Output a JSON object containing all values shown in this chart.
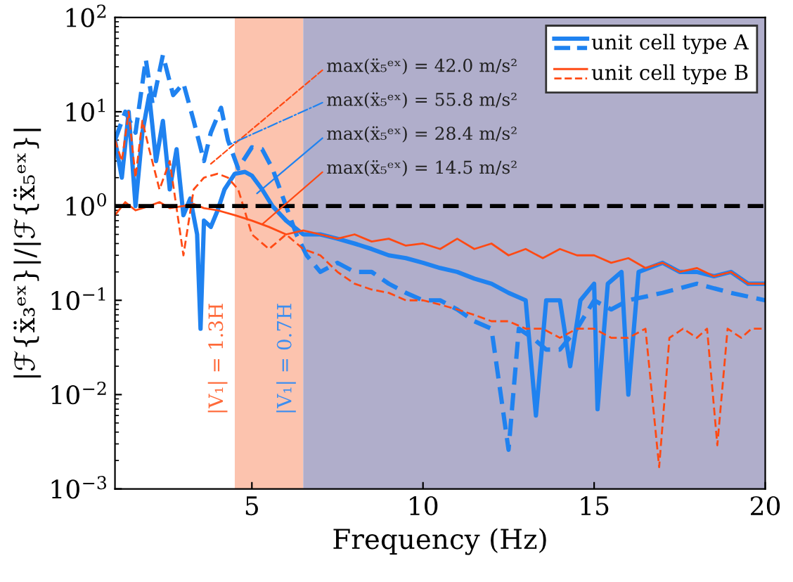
{
  "chart_data": {
    "type": "line",
    "xlabel": "Frequency (Hz)",
    "ylabel": "|ℱ{ẍ₃ᵉˣ}|/|ℱ{ẍ₅ᵉˣ}|",
    "log": "y",
    "xlim": [
      1,
      20
    ],
    "ylim": [
      0.001,
      100
    ],
    "xticks": [
      5,
      10,
      15,
      20
    ],
    "yticks": [
      {
        "value": 0.001,
        "label": "10$^{−3}$"
      },
      {
        "value": 0.01,
        "label": "10$^{−2}$"
      },
      {
        "value": 0.1,
        "label": "10$^{−1}$"
      },
      {
        "value": 1,
        "label": "10$^{0}$"
      },
      {
        "value": 10,
        "label": "10$^{1}$"
      },
      {
        "value": 100,
        "label": "10$^{2}$"
      }
    ],
    "grid": false,
    "legend": "top right",
    "series": [
      {
        "name": "unit cell type A",
        "color": "#1f82f0",
        "line_style": "solid",
        "x": [
          1,
          1.2,
          1.4,
          1.6,
          1.8,
          2,
          2.2,
          2.4,
          2.6,
          2.8,
          3,
          3.2,
          3.4,
          3.5,
          3.6,
          3.8,
          4,
          4.2,
          4.5,
          4.8,
          5,
          5.3,
          5.6,
          6,
          6.5,
          7,
          7.5,
          8,
          8.5,
          9,
          9.5,
          10,
          10.5,
          11,
          11.5,
          12,
          12.5,
          13,
          13.3,
          13.6,
          14,
          14.3,
          14.6,
          15,
          15.1,
          15.4,
          15.8,
          16,
          16.3,
          17,
          17.5,
          18,
          18.5,
          19,
          19.5,
          20
        ],
        "values": [
          5,
          2,
          10,
          1,
          6,
          15,
          3,
          8,
          1.5,
          4,
          0.8,
          1.2,
          0.5,
          0.05,
          0.7,
          0.6,
          0.9,
          1.5,
          2.2,
          2.3,
          2.1,
          1.5,
          1,
          0.7,
          0.5,
          0.5,
          0.45,
          0.4,
          0.35,
          0.3,
          0.28,
          0.25,
          0.22,
          0.2,
          0.17,
          0.15,
          0.12,
          0.1,
          0.006,
          0.1,
          0.1,
          0.02,
          0.1,
          0.15,
          0.007,
          0.15,
          0.2,
          0.01,
          0.2,
          0.25,
          0.2,
          0.2,
          0.18,
          0.2,
          0.15,
          0.15
        ]
      },
      {
        "color": "#1f82f0",
        "line_style": "dashed",
        "x": [
          1,
          1.3,
          1.6,
          1.9,
          2.1,
          2.4,
          2.7,
          3,
          3.3,
          3.6,
          3.8,
          4.1,
          4.3,
          4.6,
          5,
          5.3,
          5.6,
          6,
          6.3,
          6.6,
          7,
          7.5,
          8,
          8.5,
          9,
          9.5,
          10,
          10.5,
          11,
          11.5,
          12,
          12.5,
          12.8,
          13.2,
          13.6,
          14,
          14.5,
          15,
          15.5,
          16,
          17,
          18,
          19,
          20
        ],
        "values": [
          5,
          10,
          6,
          36,
          12,
          40,
          15,
          20,
          8,
          3,
          6,
          11,
          5,
          2.5,
          4.2,
          4,
          2.5,
          1,
          0.5,
          0.3,
          0.2,
          0.25,
          0.2,
          0.2,
          0.15,
          0.12,
          0.1,
          0.1,
          0.08,
          0.06,
          0.05,
          0.0026,
          0.05,
          0.04,
          0.03,
          0.03,
          0.05,
          0.1,
          0.08,
          0.1,
          0.12,
          0.15,
          0.12,
          0.1
        ]
      },
      {
        "name": "unit cell type B",
        "color": "#ff4a14",
        "line_style": "solid",
        "x": [
          1,
          1.3,
          1.6,
          2,
          2.3,
          2.6,
          3,
          3.3,
          3.6,
          4,
          4.5,
          5,
          5.5,
          6,
          6.5,
          7,
          7.5,
          8,
          8.5,
          9,
          9.5,
          10,
          10.5,
          11,
          11.5,
          12,
          12.5,
          13,
          13.5,
          14,
          14.5,
          15,
          15.5,
          16,
          16.5,
          17,
          17.5,
          18,
          18.5,
          19,
          19.5,
          20
        ],
        "values": [
          0.8,
          1.1,
          0.9,
          1,
          1.1,
          0.95,
          1.0,
          1.05,
          0.95,
          0.9,
          0.8,
          0.7,
          0.6,
          0.5,
          0.55,
          0.5,
          0.45,
          0.5,
          0.42,
          0.45,
          0.38,
          0.4,
          0.35,
          0.45,
          0.35,
          0.4,
          0.3,
          0.35,
          0.28,
          0.35,
          0.3,
          0.3,
          0.25,
          0.28,
          0.22,
          0.25,
          0.2,
          0.22,
          0.18,
          0.2,
          0.15,
          0.15
        ]
      },
      {
        "color": "#ff4a14",
        "line_style": "dashed",
        "x": [
          1,
          1.2,
          1.4,
          1.6,
          1.8,
          2,
          2.3,
          2.6,
          3,
          3.3,
          3.6,
          4,
          4.3,
          4.6,
          5,
          5.5,
          6,
          6.5,
          7,
          7.5,
          8,
          8.5,
          9,
          9.5,
          10,
          10.5,
          11,
          11.5,
          12,
          12.5,
          13,
          13.5,
          14,
          14.5,
          15,
          15.5,
          16,
          16.5,
          16.9,
          17.2,
          17.6,
          18,
          18.3,
          18.6,
          18.9,
          19.3,
          19.6,
          20
        ],
        "values": [
          5,
          3,
          10,
          2,
          8,
          4,
          1.5,
          3,
          0.3,
          1.5,
          2,
          2.2,
          2,
          1.5,
          0.5,
          0.35,
          0.5,
          0.35,
          0.3,
          0.2,
          0.15,
          0.13,
          0.12,
          0.1,
          0.1,
          0.09,
          0.08,
          0.07,
          0.06,
          0.06,
          0.05,
          0.05,
          0.04,
          0.05,
          0.05,
          0.04,
          0.04,
          0.05,
          0.0017,
          0.04,
          0.05,
          0.04,
          0.05,
          0.0029,
          0.05,
          0.04,
          0.05,
          0.05
        ]
      }
    ],
    "ref_lines": [
      {
        "axis": "y",
        "value": 1,
        "color": "#000000",
        "line_style": "dashed"
      }
    ],
    "bands": [
      {
        "axis": "x",
        "from": 4.5,
        "to": 6.5,
        "color": "#fcc3ae"
      },
      {
        "axis": "x",
        "from": 6.5,
        "to": 20,
        "color": "#b0aecb"
      }
    ],
    "annotations": [
      {
        "text": "max(ẍ₅ᵉˣ) = 42.0 m/s²",
        "x": 3.8,
        "y": 2.8
      },
      {
        "text": "max(ẍ₅ᵉˣ) = 55.8 m/s²",
        "x": 4.35,
        "y": 4.5
      },
      {
        "text": "max(ẍ₅ᵉˣ) = 28.4 m/s²",
        "x": 5.15,
        "y": 1.36
      },
      {
        "text": "max(ẍ₅ᵉˣ) = 14.5 m/s²",
        "x": 5.3,
        "y": 0.64
      },
      {
        "text": "|V₁| = 1.3H",
        "x": 4.5,
        "y": 0.024
      },
      {
        "text": "|V₁| = 0.7H",
        "x": 6.5,
        "y": 0.024
      }
    ]
  }
}
